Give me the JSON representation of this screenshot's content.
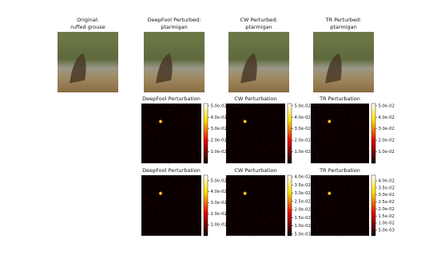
{
  "chart_data": [
    {
      "type": "image",
      "title": [
        "Original:",
        "ruffed grouse"
      ]
    },
    {
      "type": "image",
      "title": [
        "DeepFool Perturbed:",
        "ptarmigan"
      ]
    },
    {
      "type": "image",
      "title": [
        "CW Perturbed:",
        "ptarmigan"
      ]
    },
    {
      "type": "image",
      "title": [
        "TR Perturbed:",
        "ptarmigan"
      ]
    },
    {
      "type": "heatmap",
      "title": "DeepFool Perturbation",
      "colormap": "hot",
      "clim": [
        0,
        0.052
      ],
      "cticks": [
        {
          "value": 0.01,
          "label": "1.0e-02"
        },
        {
          "value": 0.02,
          "label": "2.0e-02"
        },
        {
          "value": 0.03,
          "label": "3.0e-02"
        },
        {
          "value": 0.04,
          "label": "4.0e-02"
        },
        {
          "value": 0.05,
          "label": "5.0e-02"
        }
      ]
    },
    {
      "type": "heatmap",
      "title": "CW Perturbation",
      "colormap": "hot",
      "clim": [
        0,
        0.052
      ],
      "cticks": [
        {
          "value": 0.01,
          "label": "1.0e-02"
        },
        {
          "value": 0.02,
          "label": "2.0e-02"
        },
        {
          "value": 0.03,
          "label": "3.0e-02"
        },
        {
          "value": 0.04,
          "label": "4.0e-02"
        },
        {
          "value": 0.05,
          "label": "5.0e-02"
        }
      ]
    },
    {
      "type": "heatmap",
      "title": "TR Perturbation",
      "colormap": "hot",
      "clim": [
        0,
        0.052
      ],
      "cticks": [
        {
          "value": 0.01,
          "label": "1.0e-02"
        },
        {
          "value": 0.02,
          "label": "2.0e-02"
        },
        {
          "value": 0.03,
          "label": "3.0e-02"
        },
        {
          "value": 0.04,
          "label": "4.0e-02"
        },
        {
          "value": 0.05,
          "label": "5.0e-02"
        }
      ]
    },
    {
      "type": "heatmap",
      "title": "DeepFool Perturbation",
      "colormap": "hot",
      "clim": [
        0,
        0.055
      ],
      "cticks": [
        {
          "value": 0.01,
          "label": "1.0e-02"
        },
        {
          "value": 0.02,
          "label": "2.0e-02"
        },
        {
          "value": 0.03,
          "label": "3.0e-02"
        },
        {
          "value": 0.04,
          "label": "4.0e-02"
        },
        {
          "value": 0.05,
          "label": "5.0e-02"
        }
      ]
    },
    {
      "type": "heatmap",
      "title": "CW Perturbation",
      "colormap": "hot",
      "clim": [
        0.004,
        0.041
      ],
      "cticks": [
        {
          "value": 0.005,
          "label": "5.0e-03"
        },
        {
          "value": 0.01,
          "label": "1.0e-02"
        },
        {
          "value": 0.015,
          "label": "1.5e-02"
        },
        {
          "value": 0.02,
          "label": "2.0e-02"
        },
        {
          "value": 0.025,
          "label": "2.5e-02"
        },
        {
          "value": 0.03,
          "label": "3.0e-02"
        },
        {
          "value": 0.035,
          "label": "3.5e-02"
        },
        {
          "value": 0.04,
          "label": "4.0e-02"
        }
      ]
    },
    {
      "type": "heatmap",
      "title": "TR Perturbation",
      "colormap": "hot",
      "clim": [
        0.001,
        0.044
      ],
      "cticks": [
        {
          "value": 0.005,
          "label": "5.0e-03"
        },
        {
          "value": 0.01,
          "label": "1.0e-02"
        },
        {
          "value": 0.015,
          "label": "1.5e-02"
        },
        {
          "value": 0.02,
          "label": "2.0e-02"
        },
        {
          "value": 0.025,
          "label": "2.5e-02"
        },
        {
          "value": 0.03,
          "label": "3.0e-02"
        },
        {
          "value": 0.035,
          "label": "3.5e-02"
        },
        {
          "value": 0.04,
          "label": "4.0e-02"
        }
      ]
    }
  ]
}
